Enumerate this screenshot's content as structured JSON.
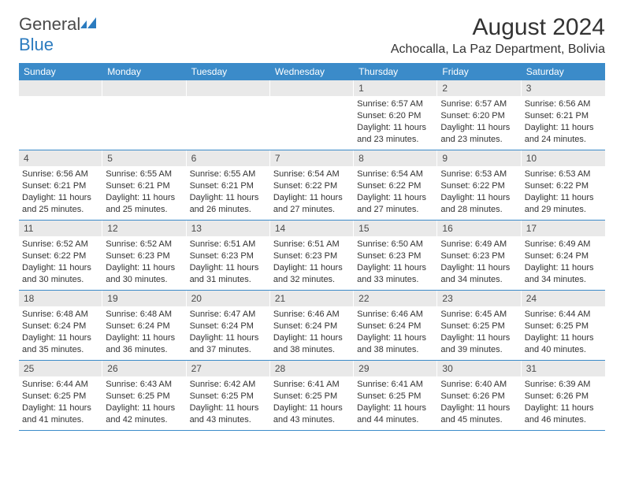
{
  "brand": {
    "part1": "General",
    "part2": "Blue"
  },
  "title": "August 2024",
  "location": "Achocalla, La Paz Department, Bolivia",
  "colors": {
    "header_bg": "#3b8bc9",
    "daynum_bg": "#e9e9e9",
    "rule": "#3b8bc9",
    "text": "#333333",
    "brand_gray": "#4a4a4a",
    "brand_blue": "#2b7bbf"
  },
  "dow": [
    "Sunday",
    "Monday",
    "Tuesday",
    "Wednesday",
    "Thursday",
    "Friday",
    "Saturday"
  ],
  "weeks": [
    [
      {
        "n": "",
        "sr": "",
        "ss": "",
        "dl": ""
      },
      {
        "n": "",
        "sr": "",
        "ss": "",
        "dl": ""
      },
      {
        "n": "",
        "sr": "",
        "ss": "",
        "dl": ""
      },
      {
        "n": "",
        "sr": "",
        "ss": "",
        "dl": ""
      },
      {
        "n": "1",
        "sr": "Sunrise: 6:57 AM",
        "ss": "Sunset: 6:20 PM",
        "dl": "Daylight: 11 hours and 23 minutes."
      },
      {
        "n": "2",
        "sr": "Sunrise: 6:57 AM",
        "ss": "Sunset: 6:20 PM",
        "dl": "Daylight: 11 hours and 23 minutes."
      },
      {
        "n": "3",
        "sr": "Sunrise: 6:56 AM",
        "ss": "Sunset: 6:21 PM",
        "dl": "Daylight: 11 hours and 24 minutes."
      }
    ],
    [
      {
        "n": "4",
        "sr": "Sunrise: 6:56 AM",
        "ss": "Sunset: 6:21 PM",
        "dl": "Daylight: 11 hours and 25 minutes."
      },
      {
        "n": "5",
        "sr": "Sunrise: 6:55 AM",
        "ss": "Sunset: 6:21 PM",
        "dl": "Daylight: 11 hours and 25 minutes."
      },
      {
        "n": "6",
        "sr": "Sunrise: 6:55 AM",
        "ss": "Sunset: 6:21 PM",
        "dl": "Daylight: 11 hours and 26 minutes."
      },
      {
        "n": "7",
        "sr": "Sunrise: 6:54 AM",
        "ss": "Sunset: 6:22 PM",
        "dl": "Daylight: 11 hours and 27 minutes."
      },
      {
        "n": "8",
        "sr": "Sunrise: 6:54 AM",
        "ss": "Sunset: 6:22 PM",
        "dl": "Daylight: 11 hours and 27 minutes."
      },
      {
        "n": "9",
        "sr": "Sunrise: 6:53 AM",
        "ss": "Sunset: 6:22 PM",
        "dl": "Daylight: 11 hours and 28 minutes."
      },
      {
        "n": "10",
        "sr": "Sunrise: 6:53 AM",
        "ss": "Sunset: 6:22 PM",
        "dl": "Daylight: 11 hours and 29 minutes."
      }
    ],
    [
      {
        "n": "11",
        "sr": "Sunrise: 6:52 AM",
        "ss": "Sunset: 6:22 PM",
        "dl": "Daylight: 11 hours and 30 minutes."
      },
      {
        "n": "12",
        "sr": "Sunrise: 6:52 AM",
        "ss": "Sunset: 6:23 PM",
        "dl": "Daylight: 11 hours and 30 minutes."
      },
      {
        "n": "13",
        "sr": "Sunrise: 6:51 AM",
        "ss": "Sunset: 6:23 PM",
        "dl": "Daylight: 11 hours and 31 minutes."
      },
      {
        "n": "14",
        "sr": "Sunrise: 6:51 AM",
        "ss": "Sunset: 6:23 PM",
        "dl": "Daylight: 11 hours and 32 minutes."
      },
      {
        "n": "15",
        "sr": "Sunrise: 6:50 AM",
        "ss": "Sunset: 6:23 PM",
        "dl": "Daylight: 11 hours and 33 minutes."
      },
      {
        "n": "16",
        "sr": "Sunrise: 6:49 AM",
        "ss": "Sunset: 6:23 PM",
        "dl": "Daylight: 11 hours and 34 minutes."
      },
      {
        "n": "17",
        "sr": "Sunrise: 6:49 AM",
        "ss": "Sunset: 6:24 PM",
        "dl": "Daylight: 11 hours and 34 minutes."
      }
    ],
    [
      {
        "n": "18",
        "sr": "Sunrise: 6:48 AM",
        "ss": "Sunset: 6:24 PM",
        "dl": "Daylight: 11 hours and 35 minutes."
      },
      {
        "n": "19",
        "sr": "Sunrise: 6:48 AM",
        "ss": "Sunset: 6:24 PM",
        "dl": "Daylight: 11 hours and 36 minutes."
      },
      {
        "n": "20",
        "sr": "Sunrise: 6:47 AM",
        "ss": "Sunset: 6:24 PM",
        "dl": "Daylight: 11 hours and 37 minutes."
      },
      {
        "n": "21",
        "sr": "Sunrise: 6:46 AM",
        "ss": "Sunset: 6:24 PM",
        "dl": "Daylight: 11 hours and 38 minutes."
      },
      {
        "n": "22",
        "sr": "Sunrise: 6:46 AM",
        "ss": "Sunset: 6:24 PM",
        "dl": "Daylight: 11 hours and 38 minutes."
      },
      {
        "n": "23",
        "sr": "Sunrise: 6:45 AM",
        "ss": "Sunset: 6:25 PM",
        "dl": "Daylight: 11 hours and 39 minutes."
      },
      {
        "n": "24",
        "sr": "Sunrise: 6:44 AM",
        "ss": "Sunset: 6:25 PM",
        "dl": "Daylight: 11 hours and 40 minutes."
      }
    ],
    [
      {
        "n": "25",
        "sr": "Sunrise: 6:44 AM",
        "ss": "Sunset: 6:25 PM",
        "dl": "Daylight: 11 hours and 41 minutes."
      },
      {
        "n": "26",
        "sr": "Sunrise: 6:43 AM",
        "ss": "Sunset: 6:25 PM",
        "dl": "Daylight: 11 hours and 42 minutes."
      },
      {
        "n": "27",
        "sr": "Sunrise: 6:42 AM",
        "ss": "Sunset: 6:25 PM",
        "dl": "Daylight: 11 hours and 43 minutes."
      },
      {
        "n": "28",
        "sr": "Sunrise: 6:41 AM",
        "ss": "Sunset: 6:25 PM",
        "dl": "Daylight: 11 hours and 43 minutes."
      },
      {
        "n": "29",
        "sr": "Sunrise: 6:41 AM",
        "ss": "Sunset: 6:25 PM",
        "dl": "Daylight: 11 hours and 44 minutes."
      },
      {
        "n": "30",
        "sr": "Sunrise: 6:40 AM",
        "ss": "Sunset: 6:26 PM",
        "dl": "Daylight: 11 hours and 45 minutes."
      },
      {
        "n": "31",
        "sr": "Sunrise: 6:39 AM",
        "ss": "Sunset: 6:26 PM",
        "dl": "Daylight: 11 hours and 46 minutes."
      }
    ]
  ]
}
